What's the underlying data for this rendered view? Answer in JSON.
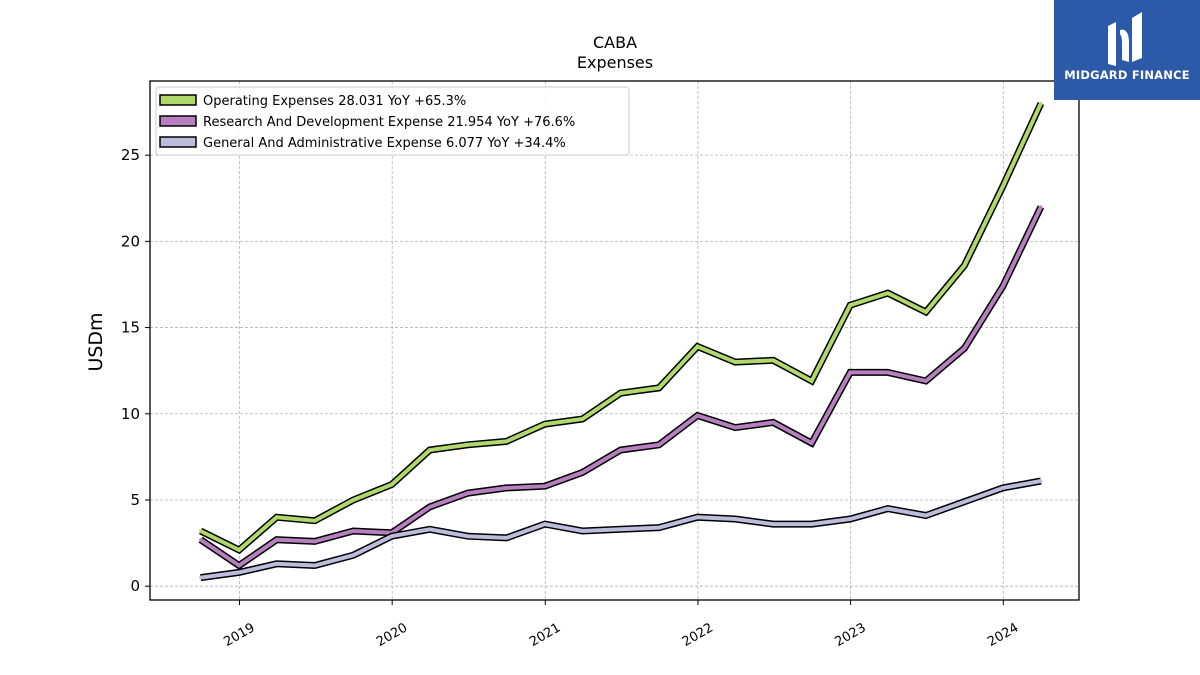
{
  "brand": {
    "name": "MIDGARD FINANCE",
    "logo_icon": "midgard-logo-icon",
    "background": "#2d5aa8"
  },
  "chart_data": {
    "type": "line",
    "title": "CABA",
    "subtitle": "Expenses",
    "xlabel": "",
    "ylabel": "USDm",
    "grid": true,
    "legend_position": "top-left",
    "xlim": [
      "2018-06-01",
      "2024-06-30"
    ],
    "ylim": [
      -0.8,
      29.3
    ],
    "yticks": [
      0,
      5,
      10,
      15,
      20,
      25
    ],
    "xticks": [
      {
        "label": "2019",
        "date": "2019-01-01"
      },
      {
        "label": "2020",
        "date": "2020-01-01"
      },
      {
        "label": "2021",
        "date": "2021-01-01"
      },
      {
        "label": "2022",
        "date": "2022-01-01"
      },
      {
        "label": "2023",
        "date": "2023-01-01"
      },
      {
        "label": "2024",
        "date": "2024-01-01"
      }
    ],
    "x": [
      "2018-09-30",
      "2018-12-31",
      "2019-03-31",
      "2019-06-30",
      "2019-09-30",
      "2019-12-31",
      "2020-03-31",
      "2020-06-30",
      "2020-09-30",
      "2020-12-31",
      "2021-03-31",
      "2021-06-30",
      "2021-09-30",
      "2021-12-31",
      "2022-03-31",
      "2022-06-30",
      "2022-09-30",
      "2022-12-31",
      "2023-03-31",
      "2023-06-30",
      "2023-09-30",
      "2023-12-31",
      "2024-03-31"
    ],
    "series": [
      {
        "name": "Operating Expenses",
        "legend_label": "Operating Expenses  28.031 YoY +65.3%",
        "color": "#b0d86a",
        "values": [
          3.2,
          2.1,
          4.0,
          3.8,
          5.0,
          5.9,
          7.9,
          8.2,
          8.4,
          9.4,
          9.7,
          11.2,
          11.5,
          13.9,
          13.0,
          13.1,
          11.9,
          16.3,
          17.0,
          15.9,
          18.6,
          23.2,
          28.0
        ]
      },
      {
        "name": "Research And Development Expense",
        "legend_label": "Research And Development Expense  21.954 YoY +76.6%",
        "color": "#b77fc0",
        "values": [
          2.7,
          1.2,
          2.7,
          2.6,
          3.2,
          3.1,
          4.6,
          5.4,
          5.7,
          5.8,
          6.6,
          7.9,
          8.2,
          9.9,
          9.2,
          9.5,
          8.3,
          12.4,
          12.4,
          11.9,
          13.8,
          17.4,
          22.0
        ]
      },
      {
        "name": "General And Administrative Expense",
        "legend_label": "General And Administrative Expense  6.077 YoY +34.4%",
        "color": "#bcbcdc",
        "values": [
          0.5,
          0.8,
          1.3,
          1.2,
          1.8,
          2.9,
          3.3,
          2.9,
          2.8,
          3.6,
          3.2,
          3.3,
          3.4,
          4.0,
          3.9,
          3.6,
          3.6,
          3.9,
          4.5,
          4.1,
          4.9,
          5.7,
          6.1
        ]
      }
    ]
  }
}
